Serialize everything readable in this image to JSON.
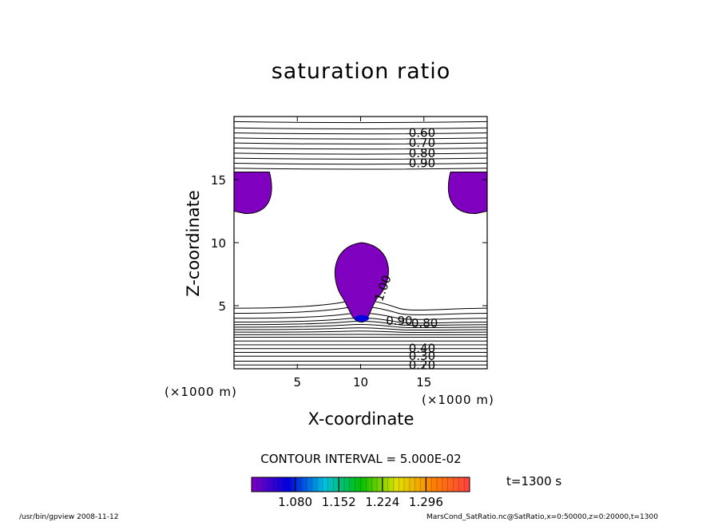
{
  "chart_data": {
    "type": "contour",
    "title": "saturation ratio",
    "xlabel": "X-coordinate",
    "ylabel": "Z-coordinate",
    "x_unit": "(×1000 m)",
    "z_unit": "(×1000 m)",
    "xlim": [
      0,
      20
    ],
    "zlim": [
      0,
      20
    ],
    "x_ticks": [
      5,
      10,
      15
    ],
    "z_ticks": [
      5,
      10,
      15
    ],
    "contour_labels": [
      {
        "value": "0.60",
        "x": 13.8,
        "z": 18.7
      },
      {
        "value": "0.70",
        "x": 13.8,
        "z": 17.9
      },
      {
        "value": "0.80",
        "x": 13.8,
        "z": 17.1
      },
      {
        "value": "0.90",
        "x": 13.8,
        "z": 16.3
      },
      {
        "value": "1.00",
        "x": 11.7,
        "z": 5.6
      },
      {
        "value": "0.90",
        "x": 12.0,
        "z": 3.8
      },
      {
        "value": "0.80",
        "x": 14.0,
        "z": 3.6
      },
      {
        "value": "0.40",
        "x": 13.8,
        "z": 1.6
      },
      {
        "value": "0.30",
        "x": 13.8,
        "z": 1.0
      },
      {
        "value": "0.20",
        "x": 13.8,
        "z": 0.3
      }
    ],
    "filled_regions": [
      {
        "label": "left-cap",
        "x_range": [
          0,
          2.8
        ],
        "z_range": [
          12.3,
          15.6
        ]
      },
      {
        "label": "right-cap",
        "x_range": [
          17.1,
          20
        ],
        "z_range": [
          12.3,
          15.6
        ]
      },
      {
        "label": "central-plume",
        "x_range": [
          7.9,
          12.3
        ],
        "z_range": [
          3.7,
          10.0
        ]
      }
    ],
    "contour_interval_text": "CONTOUR INTERVAL = 5.000E-02",
    "colorbar": {
      "ticks": [
        "1.080",
        "1.152",
        "1.224",
        "1.296"
      ],
      "colors": [
        "#8000c0",
        "#0000e0",
        "#00c0e0",
        "#00c000",
        "#e0e000",
        "#ff8000",
        "#ff4040"
      ]
    },
    "time_label": "t=1300 s"
  },
  "footer": {
    "left": "/usr/bin/gpview   2008-11-12",
    "right": "MarsCond_SatRatio.nc@SatRatio,x=0:50000,z=0:20000,t=1300"
  }
}
